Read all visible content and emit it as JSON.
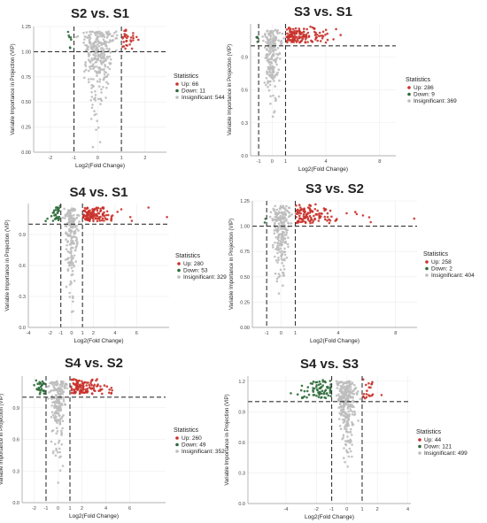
{
  "legend_heading": "Statistics",
  "colors": {
    "up": "#c8312a",
    "down": "#2e6b3a",
    "insig": "#bdbdbd",
    "thresh": "#333333"
  },
  "chart_data": [
    {
      "type": "scatter",
      "title": "S2 vs. S1",
      "xlabel": "Log2(Fold Change)",
      "ylabel": "Variable Importance in Projection (VIP)",
      "xlim": [
        -2.7,
        2.9
      ],
      "ylim": [
        0,
        1.25
      ],
      "xticks": [
        -2,
        -1,
        0,
        1,
        2
      ],
      "yticks": [
        0.0,
        0.25,
        0.5,
        0.75,
        1.0,
        1.25
      ],
      "ytick_labels": [
        "0.00",
        "0.25",
        "0.50",
        "0.75",
        "1.00",
        "1.25"
      ],
      "thresholds": {
        "vip": 1.0,
        "fc": [
          -1,
          1
        ]
      },
      "legend": [
        {
          "key": "up",
          "label": "Up: 66",
          "count": 66
        },
        {
          "key": "down",
          "label": "Down: 11",
          "count": 11
        },
        {
          "key": "insig",
          "label": "Insignificant: 544",
          "count": 544
        }
      ]
    },
    {
      "type": "scatter",
      "title": "S3 vs. S1",
      "xlabel": "Log2(Fold Change)",
      "ylabel": "Variable Importance in Projection (VIP)",
      "xlim": [
        -1.6,
        9.2
      ],
      "ylim": [
        0,
        1.2
      ],
      "xticks": [
        -1,
        0,
        1,
        4,
        8
      ],
      "ytick_labels": [
        "0.0",
        "0.3",
        "0.6",
        "0.9"
      ],
      "yticks": [
        0.0,
        0.3,
        0.6,
        0.9
      ],
      "thresholds": {
        "vip": 1.0,
        "fc": [
          -1,
          1
        ]
      },
      "legend": [
        {
          "key": "up",
          "label": "Up: 286",
          "count": 286
        },
        {
          "key": "down",
          "label": "Down: 9",
          "count": 9
        },
        {
          "key": "insig",
          "label": "Insignificant: 369",
          "count": 369
        }
      ]
    },
    {
      "type": "scatter",
      "title": "S4 vs. S1",
      "xlabel": "Log2(Fold Change)",
      "ylabel": "Variable Importance in Projection (VIP)",
      "xlim": [
        -4,
        9
      ],
      "ylim": [
        0,
        1.2
      ],
      "xticks": [
        -4,
        -2,
        -1,
        0,
        1,
        2,
        4,
        6
      ],
      "ytick_labels": [
        "0.0",
        "0.3",
        "0.6",
        "0.9"
      ],
      "yticks": [
        0.0,
        0.3,
        0.6,
        0.9
      ],
      "thresholds": {
        "vip": 1.0,
        "fc": [
          -1,
          1
        ]
      },
      "legend": [
        {
          "key": "up",
          "label": "Up: 280",
          "count": 280
        },
        {
          "key": "down",
          "label": "Down: 53",
          "count": 53
        },
        {
          "key": "insig",
          "label": "Insignificant: 329",
          "count": 329
        }
      ]
    },
    {
      "type": "scatter",
      "title": "S3 vs. S2",
      "xlabel": "Log2(Fold Change)",
      "ylabel": "Variable Importance in Projection (VIP)",
      "xlim": [
        -2,
        9.5
      ],
      "ylim": [
        0,
        1.25
      ],
      "xticks": [
        -1,
        0,
        1,
        4,
        8
      ],
      "ytick_labels": [
        "0.00",
        "0.25",
        "0.50",
        "0.75",
        "1.00",
        "1.25"
      ],
      "yticks": [
        0.0,
        0.25,
        0.5,
        0.75,
        1.0,
        1.25
      ],
      "thresholds": {
        "vip": 1.0,
        "fc": [
          -1,
          1
        ]
      },
      "legend": [
        {
          "key": "up",
          "label": "Up: 258",
          "count": 258
        },
        {
          "key": "down",
          "label": "Down: 2",
          "count": 2
        },
        {
          "key": "insig",
          "label": "Insignificant: 404",
          "count": 404
        }
      ]
    },
    {
      "type": "scatter",
      "title": "S4 vs. S2",
      "xlabel": "Log2(Fold Change)",
      "ylabel": "Variable Importance in Projection (VIP)",
      "xlim": [
        -3,
        9
      ],
      "ylim": [
        0,
        1.2
      ],
      "xticks": [
        -2,
        -1,
        0,
        1,
        2,
        4,
        6
      ],
      "ytick_labels": [
        "0.0",
        "0.3",
        "0.6",
        "0.9"
      ],
      "yticks": [
        0.0,
        0.3,
        0.6,
        0.9
      ],
      "thresholds": {
        "vip": 1.0,
        "fc": [
          -1,
          1
        ]
      },
      "legend": [
        {
          "key": "up",
          "label": "Up: 260",
          "count": 260
        },
        {
          "key": "down",
          "label": "Down: 49",
          "count": 49
        },
        {
          "key": "insig",
          "label": "Insignificant: 352",
          "count": 352
        }
      ]
    },
    {
      "type": "scatter",
      "title": "S4 vs. S3",
      "xlabel": "Log2(Fold Change)",
      "ylabel": "Variable Importance in Projection (VIP)",
      "xlim": [
        -6.5,
        4.2
      ],
      "ylim": [
        0,
        1.25
      ],
      "xticks": [
        -4,
        -2,
        -1,
        0,
        1,
        2,
        4
      ],
      "ytick_labels": [
        "0.0",
        "0.3",
        "0.6",
        "0.9",
        "1.2"
      ],
      "yticks": [
        0.0,
        0.3,
        0.6,
        0.9,
        1.2
      ],
      "thresholds": {
        "vip": 1.0,
        "fc": [
          -1,
          1
        ]
      },
      "legend": [
        {
          "key": "up",
          "label": "Up: 44",
          "count": 44
        },
        {
          "key": "down",
          "label": "Down: 121",
          "count": 121
        },
        {
          "key": "insig",
          "label": "Insignificant: 499",
          "count": 499
        }
      ]
    }
  ]
}
